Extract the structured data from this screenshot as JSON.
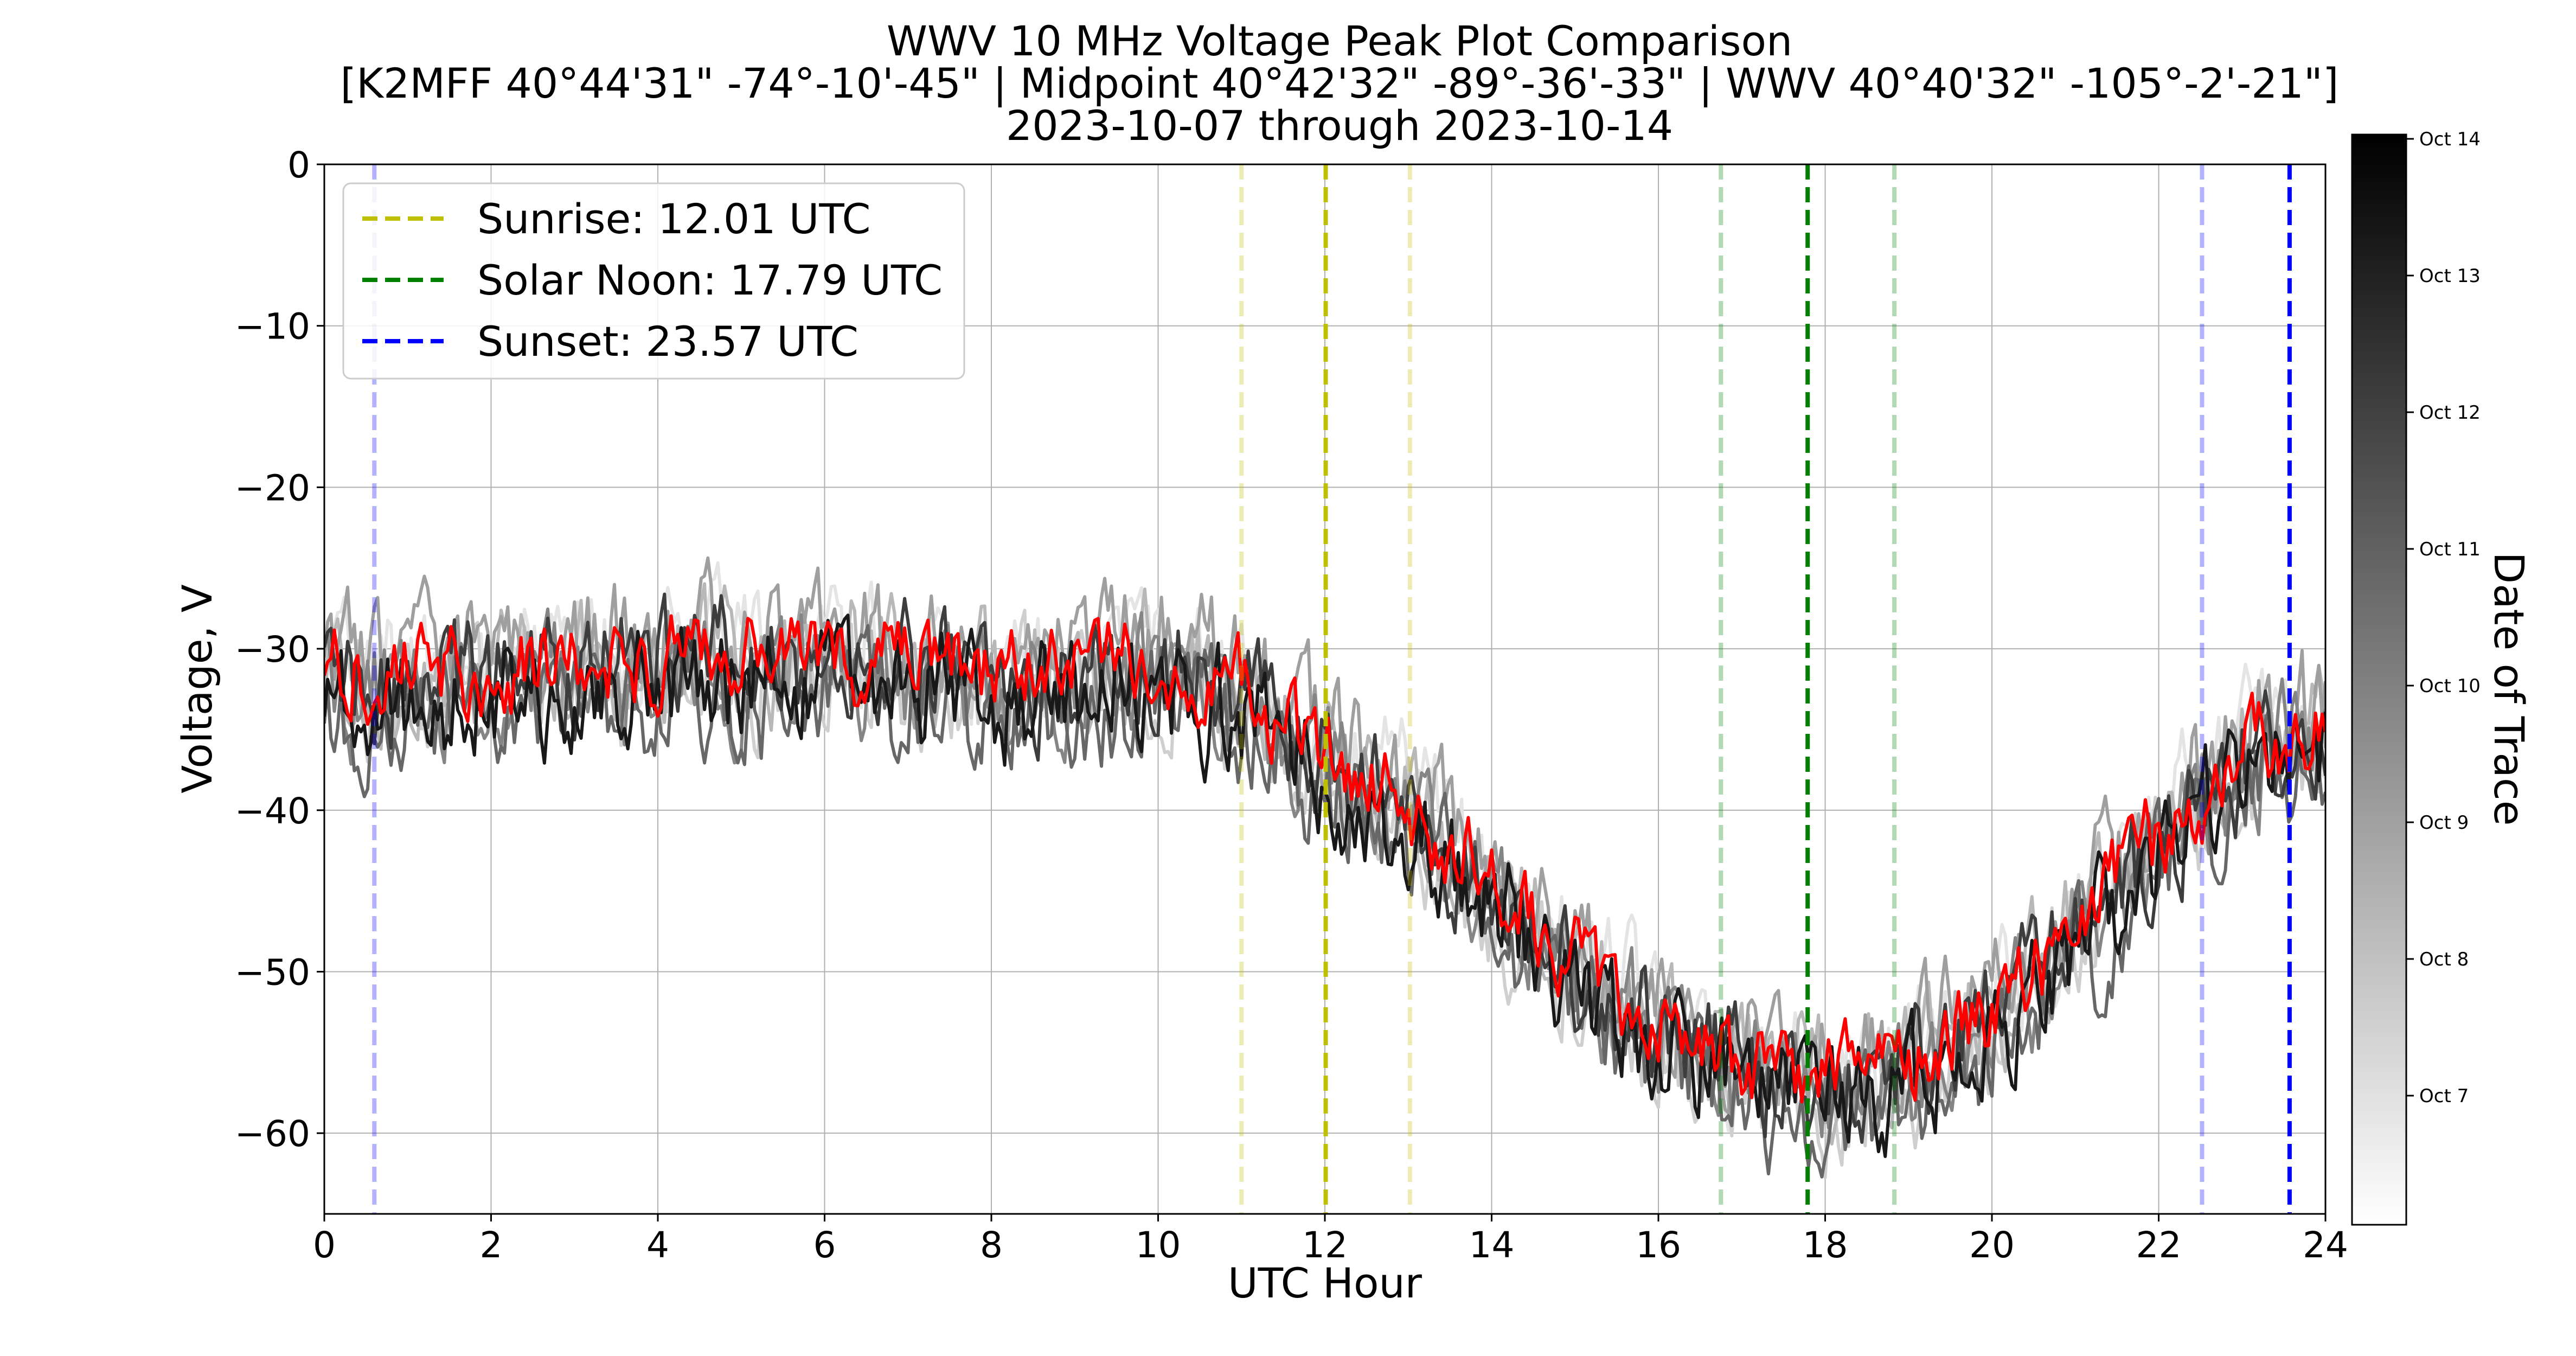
{
  "chart_data": {
    "type": "line",
    "title": "WWV 10 MHz Voltage Peak Plot Comparison",
    "subtitle": "[K2MFF  40°44'31\"  -74°-10'-45\" | Midpoint  40°42'32\"  -89°-36'-33\" | WWV  40°40'32\"  -105°-2'-21\"]",
    "date_range": "2023-10-07 through 2023-10-14",
    "xlabel": "UTC Hour",
    "ylabel": "Voltage, V",
    "xlim": [
      0,
      24
    ],
    "ylim": [
      -65,
      0
    ],
    "xticks": [
      0,
      2,
      4,
      6,
      8,
      10,
      12,
      14,
      16,
      18,
      20,
      22,
      24
    ],
    "yticks": [
      0,
      -10,
      -20,
      -30,
      -40,
      -50,
      -60
    ],
    "grid": true,
    "legend_position": "top-left",
    "legend": [
      {
        "label": "Sunrise: 12.01 UTC",
        "color": "#bfbf00"
      },
      {
        "label": "Solar Noon: 17.79 UTC",
        "color": "#008000"
      },
      {
        "label": "Sunset: 23.57 UTC",
        "color": "#0000ff"
      }
    ],
    "vlines": [
      {
        "x": 12.01,
        "color": "#bfbf00",
        "style": "dashed",
        "emphasis": "strong"
      },
      {
        "x": 11.0,
        "color": "#bfbf00",
        "style": "dashed",
        "emphasis": "faint"
      },
      {
        "x": 13.02,
        "color": "#bfbf00",
        "style": "dashed",
        "emphasis": "faint"
      },
      {
        "x": 17.79,
        "color": "#008000",
        "style": "dashed",
        "emphasis": "strong"
      },
      {
        "x": 16.75,
        "color": "#008000",
        "style": "dashed",
        "emphasis": "faint"
      },
      {
        "x": 18.83,
        "color": "#008000",
        "style": "dashed",
        "emphasis": "faint"
      },
      {
        "x": 23.57,
        "color": "#0000ff",
        "style": "dashed",
        "emphasis": "strong"
      },
      {
        "x": 0.6,
        "color": "#0000ff",
        "style": "dashed",
        "emphasis": "faint"
      },
      {
        "x": 22.52,
        "color": "#0000ff",
        "style": "dashed",
        "emphasis": "faint"
      }
    ],
    "trend": {
      "x": [
        0,
        2,
        4,
        6,
        8,
        10,
        11,
        12,
        13,
        14,
        15,
        16,
        17,
        18,
        19,
        20,
        21,
        22,
        23,
        24
      ],
      "y": [
        -32,
        -32,
        -31,
        -31,
        -32,
        -31,
        -33,
        -37,
        -40,
        -45,
        -50,
        -54,
        -56,
        -57,
        -56,
        -53,
        -48,
        -42,
        -37,
        -35
      ]
    },
    "series": [
      {
        "date": "Oct 7",
        "color": "#e4e4e4",
        "noise": 4.0,
        "offset": 1.0,
        "seed": 7
      },
      {
        "date": "Oct 8",
        "color": "#cfcfcf",
        "noise": 4.0,
        "offset": -1.0,
        "seed": 8
      },
      {
        "date": "Oct 9",
        "color": "#b8b8b8",
        "noise": 4.0,
        "offset": 0.5,
        "seed": 9
      },
      {
        "date": "Oct 10",
        "color": "#9f9f9f",
        "noise": 4.0,
        "offset": 1.5,
        "seed": 10
      },
      {
        "date": "Oct 11",
        "color": "#858585",
        "noise": 4.0,
        "offset": -0.5,
        "seed": 11
      },
      {
        "date": "Oct 12",
        "color": "#676767",
        "noise": 4.0,
        "offset": -2.0,
        "seed": 12
      },
      {
        "date": "Oct 13",
        "color": "#3d3d3d",
        "noise": 4.0,
        "offset": 0.0,
        "seed": 13
      },
      {
        "date": "Oct 14",
        "color": "#181818",
        "noise": 4.0,
        "offset": -1.0,
        "seed": 14
      },
      {
        "date": "Oct 14",
        "color": "#ff0000",
        "noise": 3.0,
        "offset": 0.5,
        "seed": 21,
        "highlight": true
      }
    ],
    "colorbar": {
      "label": "Date of Trace",
      "ticks": [
        "Oct 14",
        "Oct 13",
        "Oct 12",
        "Oct 11",
        "Oct 10",
        "Oct 9",
        "Oct 8",
        "Oct 7"
      ],
      "cmap_top": "#000000",
      "cmap_bottom": "#ffffff"
    }
  }
}
